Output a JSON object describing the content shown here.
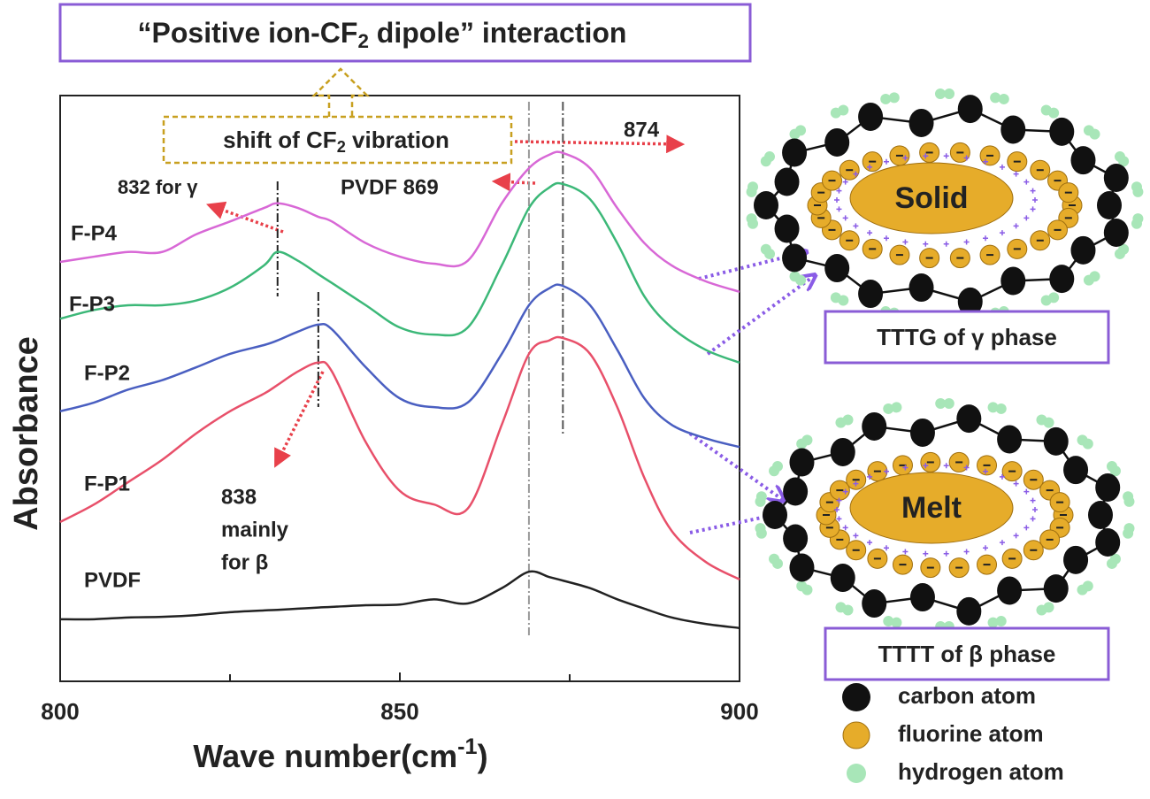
{
  "title": [
    "“Positive ion-CF",
    "2",
    " dipole” interaction"
  ],
  "chart_data": {
    "type": "line",
    "x": [
      800,
      805,
      810,
      815,
      820,
      825,
      830,
      832,
      835,
      838,
      840,
      845,
      850,
      855,
      860,
      865,
      869,
      872,
      874,
      878,
      882,
      886,
      890,
      895,
      900
    ],
    "xlabel": [
      "Wave number(cm",
      "-1",
      ")"
    ],
    "ylabel": "Absorbance",
    "xlim": [
      800,
      900
    ],
    "ylim": [
      0,
      100
    ],
    "xticks": [
      800,
      850,
      900
    ],
    "minor_xticks": [
      825,
      875
    ],
    "series": [
      {
        "name": "F-P4",
        "color": "#d868d6",
        "values": [
          71.6,
          72.5,
          73.3,
          73.3,
          76.3,
          78.5,
          80.8,
          81.6,
          80.8,
          79.3,
          78.5,
          74.8,
          72.5,
          71.3,
          71.8,
          81.6,
          87.6,
          89.9,
          90.2,
          87.6,
          80.8,
          74.8,
          71.0,
          68.3,
          66.5
        ]
      },
      {
        "name": "F-P3",
        "color": "#3cb878",
        "values": [
          61.9,
          63.4,
          64.2,
          64.2,
          65.0,
          67.2,
          71.0,
          73.3,
          71.8,
          69.5,
          68.0,
          64.2,
          60.4,
          59.2,
          60.4,
          71.0,
          80.8,
          84.3,
          84.9,
          82.3,
          74.8,
          65.7,
          60.4,
          56.6,
          54.4
        ]
      },
      {
        "name": "F-P2",
        "color": "#4a5fc1",
        "values": [
          46.1,
          47.6,
          49.8,
          51.4,
          53.6,
          55.9,
          57.4,
          58.2,
          59.7,
          60.9,
          60.1,
          53.6,
          48.3,
          46.8,
          47.6,
          55.9,
          64.2,
          67.1,
          67.5,
          64.2,
          56.6,
          48.3,
          43.8,
          41.5,
          40.0
        ]
      },
      {
        "name": "F-P1",
        "color": "#e8506a",
        "values": [
          27.2,
          30.2,
          34.0,
          37.8,
          42.3,
          46.1,
          49.1,
          50.6,
          52.9,
          54.4,
          52.9,
          40.8,
          32.5,
          30.2,
          29.5,
          43.8,
          55.9,
          58.2,
          58.6,
          55.9,
          46.8,
          34.7,
          25.7,
          20.4,
          17.4
        ]
      },
      {
        "name": "PVDF",
        "color": "#222222",
        "values": [
          10.6,
          10.6,
          10.9,
          11.0,
          11.3,
          11.8,
          12.1,
          12.2,
          12.4,
          12.6,
          12.7,
          13.0,
          13.1,
          14.0,
          13.3,
          15.9,
          18.7,
          17.8,
          17.2,
          15.9,
          14.0,
          12.4,
          10.9,
          9.8,
          9.1
        ]
      }
    ],
    "reference_lines": [
      832,
      838,
      869,
      874
    ],
    "annotations": {
      "shift_label": [
        "shift of CF",
        "2",
        " vibration"
      ],
      "peak_874": "874",
      "pvdf_869": "PVDF 869",
      "gamma_832": "832 for γ",
      "beta_838": [
        "838",
        "mainly",
        "for β"
      ]
    }
  },
  "diagram": {
    "states": [
      "Solid",
      "Melt"
    ],
    "phases": [
      "TTTG of γ phase",
      "TTTT of β phase"
    ],
    "legend": [
      "carbon atom",
      "fluorine atom",
      "hydrogen atom"
    ]
  }
}
